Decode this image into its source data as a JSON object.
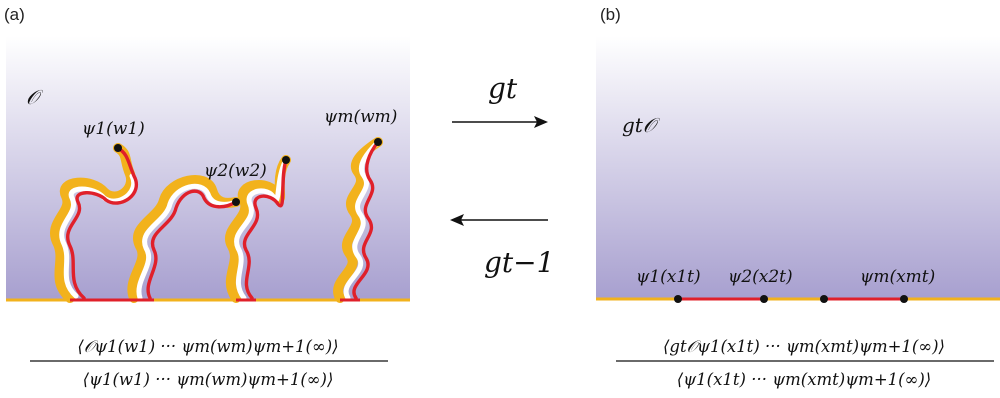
{
  "panels": {
    "left": {
      "label": "(a)",
      "domain_label": "𝒪",
      "points": [
        {
          "label": "ψ1(w1)"
        },
        {
          "label": "ψ2(w2)"
        },
        {
          "label": "ψm(wm)"
        }
      ],
      "formula_numerator": "⟨𝒪ψ1(w1) ··· ψm(wm)ψm+1(∞)⟩",
      "formula_denominator": "⟨ψ1(w1) ··· ψm(wm)ψm+1(∞)⟩"
    },
    "right": {
      "label": "(b)",
      "domain_label": "gt𝒪",
      "points": [
        {
          "label": "ψ1(x1t)"
        },
        {
          "label": "ψ2(x2t)"
        },
        {
          "label": "ψm(xmt)"
        }
      ],
      "formula_numerator": "⟨gt𝒪ψ1(x1t) ··· ψm(xmt)ψm+1(∞)⟩",
      "formula_denominator": "⟨ψ1(x1t) ··· ψm(xmt)ψm+1(∞)⟩"
    }
  },
  "arrows": {
    "forward_label": "gt",
    "backward_label": "gt−1"
  },
  "colors": {
    "gradient_top": "#ffffff",
    "gradient_bottom": "#a79fcf",
    "curve_red": "#e0202a",
    "curve_orange": "#f2b21c",
    "boundary": "#f2b21c",
    "dot": "#111111"
  }
}
